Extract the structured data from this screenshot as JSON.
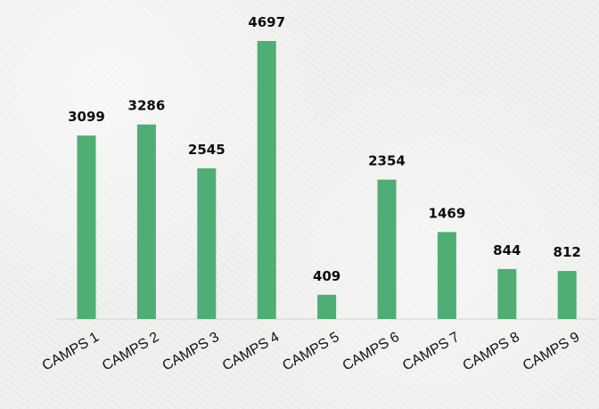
{
  "chart_data": {
    "type": "bar",
    "categories": [
      "CAMPS 1",
      "CAMPS 2",
      "CAMPS 3",
      "CAMPS 4",
      "CAMPS 5",
      "CAMPS 6",
      "CAMPS 7",
      "CAMPS 8",
      "CAMPS 9"
    ],
    "values": [
      3099,
      3286,
      2545,
      4697,
      409,
      2354,
      1469,
      844,
      812
    ],
    "ylim": [
      0,
      4697
    ],
    "grid": false,
    "legend": "none",
    "data_labels": true,
    "colors": {
      "bar": "#4fae74",
      "baseline": "#d4d4d4",
      "label": "#0d0d0d"
    }
  }
}
